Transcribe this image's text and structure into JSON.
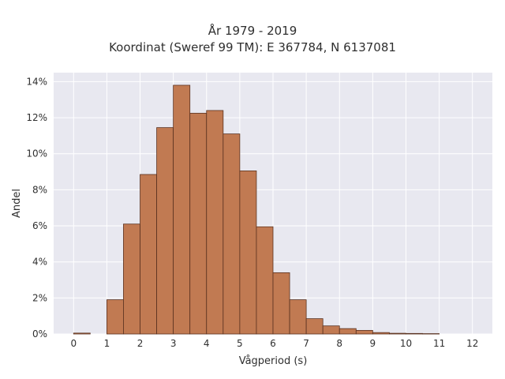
{
  "chart_data": {
    "type": "bar",
    "title": "År 1979 - 2019",
    "subtitle": "Koordinat (Sweref 99 TM): E 367784, N 6137081",
    "xlabel": "Vågperiod (s)",
    "ylabel": "Andel",
    "xlim": [
      -0.6,
      12.6
    ],
    "ylim": [
      0,
      14.5
    ],
    "xticks": [
      0,
      1,
      2,
      3,
      4,
      5,
      6,
      7,
      8,
      9,
      10,
      11,
      12
    ],
    "xtick_labels": [
      "0",
      "1",
      "2",
      "3",
      "4",
      "5",
      "6",
      "7",
      "8",
      "9",
      "10",
      "11",
      "12"
    ],
    "yticks": [
      0,
      2,
      4,
      6,
      8,
      10,
      12,
      14
    ],
    "ytick_labels": [
      "0%",
      "2%",
      "4%",
      "6%",
      "8%",
      "10%",
      "12%",
      "14%"
    ],
    "bin_width": 0.5,
    "bins": [
      {
        "x": 0.0,
        "value": 0.05
      },
      {
        "x": 1.0,
        "value": 1.9
      },
      {
        "x": 1.5,
        "value": 6.1
      },
      {
        "x": 2.0,
        "value": 8.85
      },
      {
        "x": 2.5,
        "value": 11.45
      },
      {
        "x": 3.0,
        "value": 13.8
      },
      {
        "x": 3.5,
        "value": 12.25
      },
      {
        "x": 4.0,
        "value": 12.4
      },
      {
        "x": 4.5,
        "value": 11.1
      },
      {
        "x": 5.0,
        "value": 9.05
      },
      {
        "x": 5.5,
        "value": 5.95
      },
      {
        "x": 6.0,
        "value": 3.4
      },
      {
        "x": 6.5,
        "value": 1.9
      },
      {
        "x": 7.0,
        "value": 0.85
      },
      {
        "x": 7.5,
        "value": 0.45
      },
      {
        "x": 8.0,
        "value": 0.3
      },
      {
        "x": 8.5,
        "value": 0.2
      },
      {
        "x": 9.0,
        "value": 0.08
      },
      {
        "x": 9.5,
        "value": 0.04
      },
      {
        "x": 10.0,
        "value": 0.03
      },
      {
        "x": 10.5,
        "value": 0.02
      }
    ],
    "grid": true,
    "colors": {
      "bar_fill": "#c17a52",
      "bar_stroke": "#5a3220",
      "plot_background": "#e8e8f0",
      "grid": "#ffffff"
    }
  }
}
